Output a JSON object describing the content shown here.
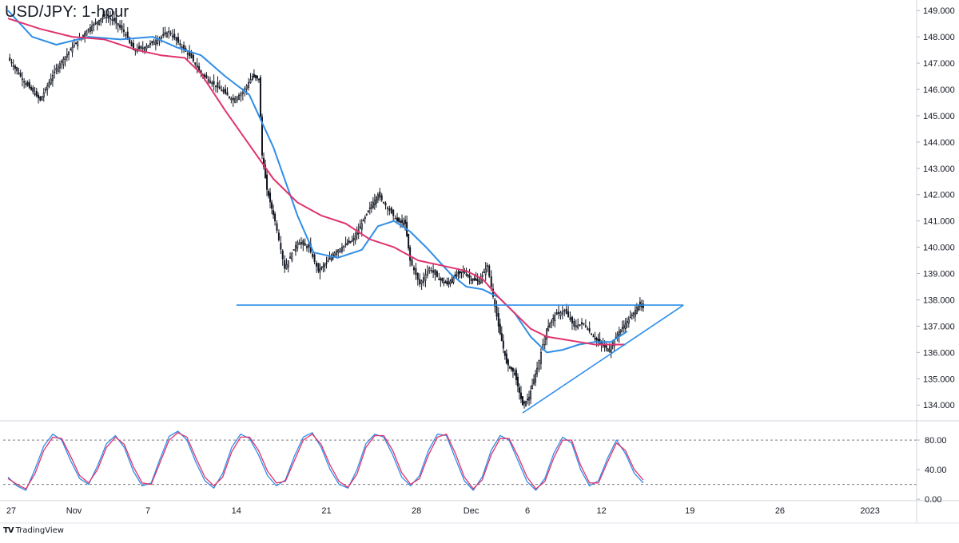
{
  "chart_data": {
    "type": "line",
    "title": "USD/JPY: 1-hour",
    "source": "TradingView",
    "price_panel": {
      "ylim": [
        133.4,
        149.4
      ],
      "y_ticks": [
        "149.000",
        "148.000",
        "147.000",
        "146.000",
        "145.000",
        "144.000",
        "143.000",
        "142.000",
        "141.000",
        "140.000",
        "139.000",
        "138.000",
        "137.000",
        "136.000",
        "135.000",
        "134.000"
      ],
      "series": [
        {
          "kind": "candles",
          "color": "#131722",
          "points": [
            [
              0.0,
              147.2
            ],
            [
              1.0,
              146.3
            ],
            [
              2.0,
              145.6
            ],
            [
              3.0,
              146.8
            ],
            [
              4.0,
              147.6
            ],
            [
              5.0,
              148.3
            ],
            [
              6.0,
              148.8
            ],
            [
              6.6,
              148.6
            ],
            [
              7.2,
              148.2
            ],
            [
              7.8,
              147.5
            ],
            [
              8.5,
              147.6
            ],
            [
              9.3,
              147.9
            ],
            [
              10.0,
              148.2
            ],
            [
              10.7,
              147.7
            ],
            [
              11.4,
              147.2
            ],
            [
              12.0,
              146.6
            ],
            [
              12.8,
              146.2
            ],
            [
              13.4,
              145.9
            ],
            [
              14.0,
              145.6
            ],
            [
              14.6,
              145.9
            ],
            [
              15.2,
              146.5
            ],
            [
              15.6,
              146.4
            ],
            [
              15.8,
              143.5
            ],
            [
              16.1,
              142.2
            ],
            [
              16.6,
              141.0
            ],
            [
              17.2,
              139.2
            ],
            [
              18.0,
              140.2
            ],
            [
              18.7,
              140.0
            ],
            [
              19.3,
              139.1
            ],
            [
              19.8,
              139.4
            ],
            [
              20.3,
              139.8
            ],
            [
              21.0,
              140.1
            ],
            [
              21.5,
              140.3
            ],
            [
              22.0,
              140.9
            ],
            [
              22.5,
              141.5
            ],
            [
              23.0,
              142.0
            ],
            [
              23.6,
              141.5
            ],
            [
              24.2,
              141.0
            ],
            [
              24.7,
              140.9
            ],
            [
              25.0,
              139.5
            ],
            [
              25.6,
              138.6
            ],
            [
              26.2,
              139.2
            ],
            [
              26.8,
              138.8
            ],
            [
              27.3,
              138.6
            ],
            [
              27.8,
              138.9
            ],
            [
              28.3,
              139.1
            ],
            [
              28.8,
              138.8
            ],
            [
              29.3,
              138.7
            ],
            [
              29.8,
              139.3
            ],
            [
              30.05,
              138.5
            ],
            [
              30.5,
              137.0
            ],
            [
              31.0,
              135.6
            ],
            [
              31.5,
              135.2
            ],
            [
              32.0,
              134.0
            ],
            [
              32.4,
              134.3
            ],
            [
              32.9,
              135.4
            ],
            [
              33.5,
              136.9
            ],
            [
              34.0,
              137.4
            ],
            [
              34.6,
              137.6
            ],
            [
              35.2,
              137.0
            ],
            [
              35.8,
              137.1
            ],
            [
              36.4,
              136.6
            ],
            [
              36.9,
              136.3
            ],
            [
              37.4,
              136.1
            ],
            [
              37.9,
              136.7
            ],
            [
              38.4,
              137.1
            ],
            [
              38.9,
              137.5
            ],
            [
              39.2,
              137.8
            ],
            [
              39.5,
              137.7
            ]
          ]
        },
        {
          "name": "",
          "kind": "ma_fast",
          "color": "#2f8ee8",
          "points": [
            [
              0.0,
              149.0
            ],
            [
              1.5,
              148.0
            ],
            [
              3.0,
              147.7
            ],
            [
              5.0,
              148.0
            ],
            [
              7.0,
              147.9
            ],
            [
              9.0,
              148.0
            ],
            [
              10.5,
              147.6
            ],
            [
              12.0,
              147.3
            ],
            [
              13.5,
              146.5
            ],
            [
              15.0,
              145.8
            ],
            [
              16.5,
              143.8
            ],
            [
              18.0,
              141.2
            ],
            [
              19.0,
              139.8
            ],
            [
              20.5,
              139.6
            ],
            [
              22.0,
              139.9
            ],
            [
              23.0,
              140.8
            ],
            [
              24.0,
              141.0
            ],
            [
              25.0,
              140.6
            ],
            [
              26.0,
              140.0
            ],
            [
              27.5,
              139.0
            ],
            [
              28.5,
              138.5
            ],
            [
              29.5,
              138.4
            ],
            [
              30.5,
              138.1
            ],
            [
              31.5,
              137.5
            ],
            [
              32.5,
              136.6
            ],
            [
              33.5,
              136.0
            ],
            [
              34.5,
              136.1
            ],
            [
              35.5,
              136.3
            ],
            [
              36.5,
              136.4
            ],
            [
              37.5,
              136.4
            ],
            [
              38.5,
              136.8
            ]
          ]
        },
        {
          "name": "",
          "kind": "ma_slow",
          "color": "#e0336d",
          "points": [
            [
              0.0,
              148.7
            ],
            [
              2.0,
              148.3
            ],
            [
              4.0,
              148.0
            ],
            [
              6.0,
              147.9
            ],
            [
              8.0,
              147.5
            ],
            [
              9.5,
              147.3
            ],
            [
              11.0,
              147.2
            ],
            [
              12.0,
              146.6
            ],
            [
              13.5,
              145.2
            ],
            [
              15.0,
              143.9
            ],
            [
              16.5,
              142.6
            ],
            [
              18.0,
              141.7
            ],
            [
              19.5,
              141.2
            ],
            [
              21.0,
              140.9
            ],
            [
              22.5,
              140.3
            ],
            [
              24.0,
              140.0
            ],
            [
              25.5,
              139.5
            ],
            [
              27.0,
              139.3
            ],
            [
              28.5,
              139.1
            ],
            [
              29.5,
              138.8
            ],
            [
              30.5,
              138.1
            ],
            [
              31.5,
              137.5
            ],
            [
              32.5,
              136.9
            ],
            [
              33.5,
              136.6
            ],
            [
              34.5,
              136.5
            ],
            [
              35.5,
              136.4
            ],
            [
              36.5,
              136.3
            ],
            [
              37.5,
              136.3
            ],
            [
              38.4,
              136.3
            ]
          ]
        }
      ],
      "trendlines": [
        {
          "kind": "horizontal-resistance",
          "color": "#2f8ee8",
          "from": [
            14.2,
            137.8
          ],
          "to": [
            42.0,
            137.8
          ]
        },
        {
          "kind": "rising-support",
          "color": "#2f8ee8",
          "from": [
            32.0,
            133.7
          ],
          "to": [
            42.0,
            137.8
          ]
        }
      ]
    },
    "oscillator_panel": {
      "ylim": [
        -2,
        106
      ],
      "y_ticks": [
        "80.00",
        "40.00",
        "0.00"
      ],
      "levels": [
        80,
        20
      ],
      "series": [
        {
          "name": "",
          "color": "#2f8ee8",
          "values": [
            30,
            18,
            12,
            40,
            72,
            88,
            80,
            52,
            28,
            20,
            45,
            75,
            86,
            70,
            38,
            18,
            22,
            55,
            85,
            92,
            80,
            50,
            25,
            15,
            35,
            70,
            88,
            82,
            60,
            32,
            18,
            26,
            58,
            84,
            90,
            70,
            40,
            20,
            15,
            40,
            75,
            88,
            84,
            60,
            30,
            18,
            32,
            66,
            88,
            86,
            55,
            25,
            12,
            30,
            66,
            86,
            80,
            52,
            24,
            12,
            28,
            62,
            84,
            76,
            40,
            18,
            25,
            55,
            80,
            62,
            35,
            22
          ]
        },
        {
          "name": "",
          "color": "#e0336d",
          "values": [
            28,
            20,
            14,
            34,
            66,
            84,
            82,
            58,
            32,
            22,
            40,
            70,
            84,
            74,
            44,
            22,
            20,
            50,
            80,
            90,
            84,
            56,
            30,
            18,
            30,
            64,
            84,
            84,
            66,
            38,
            22,
            24,
            52,
            80,
            88,
            74,
            46,
            24,
            16,
            34,
            70,
            86,
            86,
            66,
            36,
            20,
            28,
            60,
            84,
            88,
            62,
            30,
            14,
            26,
            60,
            82,
            82,
            58,
            30,
            14,
            24,
            56,
            80,
            80,
            46,
            22,
            22,
            50,
            76,
            66,
            40,
            26
          ]
        }
      ]
    },
    "x_axis": {
      "xlim": [
        -0.3,
        56.5
      ],
      "ticks": [
        {
          "pos": 0.2,
          "label": "27"
        },
        {
          "pos": 4.1,
          "label": "Nov"
        },
        {
          "pos": 8.7,
          "label": "7"
        },
        {
          "pos": 14.2,
          "label": "14"
        },
        {
          "pos": 19.8,
          "label": "21"
        },
        {
          "pos": 25.4,
          "label": "28"
        },
        {
          "pos": 28.8,
          "label": "Dec"
        },
        {
          "pos": 32.3,
          "label": "6"
        },
        {
          "pos": 36.9,
          "label": "12"
        },
        {
          "pos": 42.4,
          "label": "19"
        },
        {
          "pos": 48.0,
          "label": "26"
        },
        {
          "pos": 53.6,
          "label": "2023"
        }
      ]
    }
  },
  "branding": {
    "logo_mark": "TV",
    "logo_text": "TradingView"
  }
}
